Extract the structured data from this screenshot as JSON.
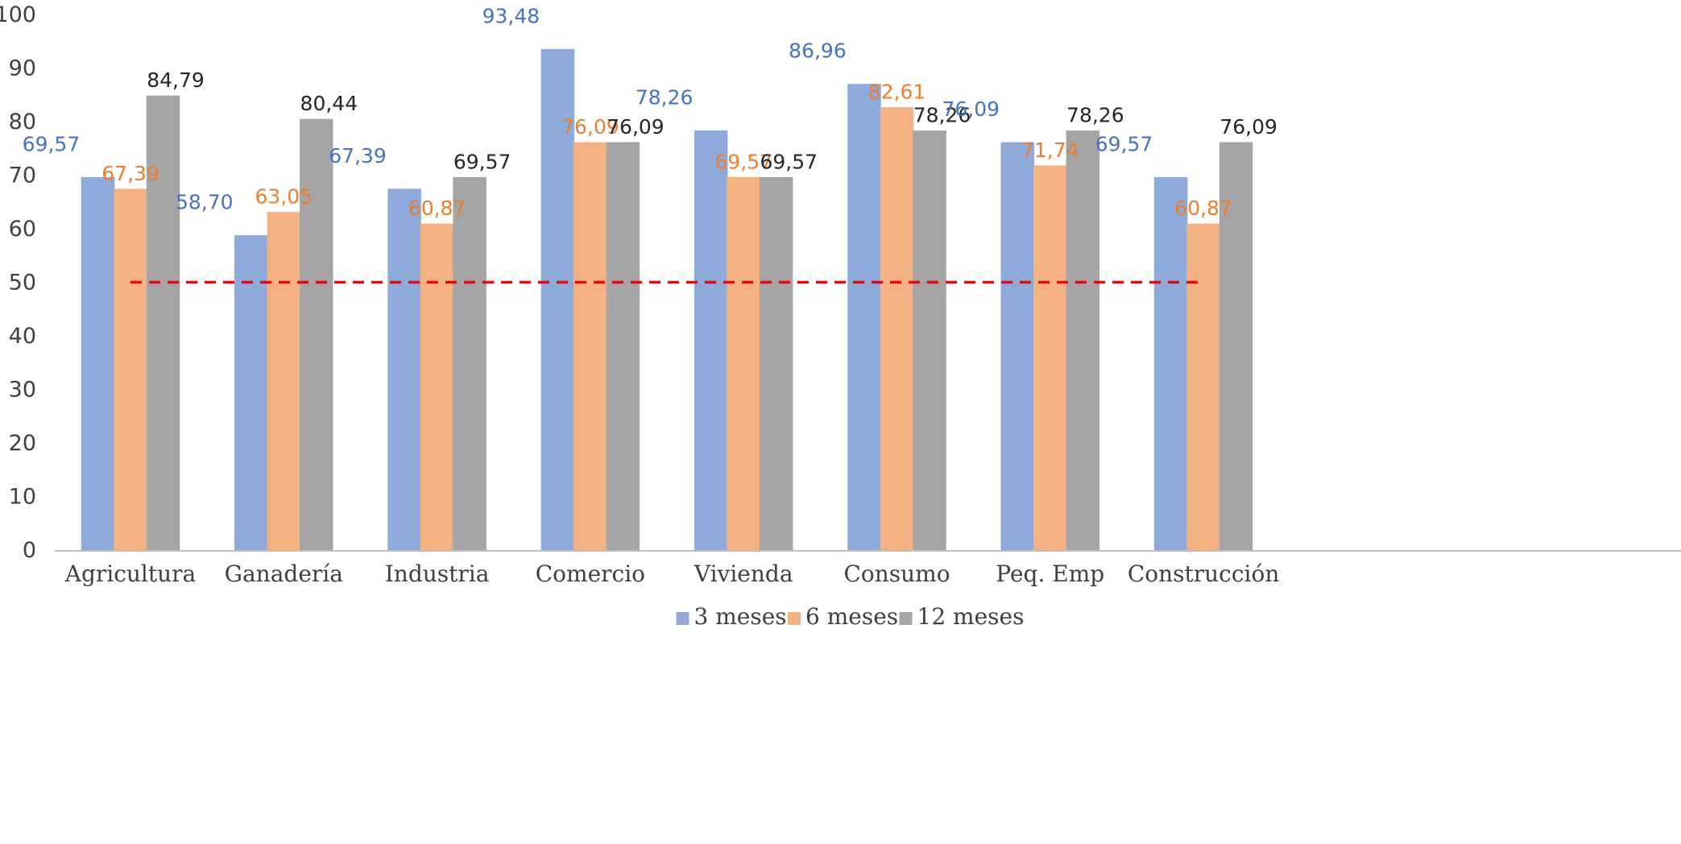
{
  "chart_data": {
    "type": "bar",
    "title": "",
    "xlabel": "",
    "ylabel": "",
    "ylim": [
      0,
      100
    ],
    "yticks": [
      "0",
      "10",
      "20",
      "30",
      "40",
      "50",
      "60",
      "70",
      "80",
      "90",
      "100"
    ],
    "grid": false,
    "legend_position": "bottom",
    "categories": [
      "Agricultura",
      "Ganadería",
      "Industria",
      "Comercio",
      "Vivienda",
      "Consumo",
      "Peq. Emp",
      "Construcción"
    ],
    "series": [
      {
        "name": "3 meses",
        "color": "#8EAADB",
        "label_color": "#4472C4",
        "values": [
          69.57,
          58.7,
          67.39,
          93.48,
          78.26,
          86.96,
          76.09,
          69.57
        ],
        "labels": [
          "69,57",
          "58,70",
          "67,39",
          "93,48",
          "78,26",
          "86,96",
          "76,09",
          "69,57"
        ]
      },
      {
        "name": "6 meses",
        "color": "#F4B183",
        "label_color": "#ED7D31",
        "values": [
          67.39,
          63.05,
          60.87,
          76.09,
          69.57,
          82.61,
          71.74,
          60.87
        ],
        "labels": [
          "67,39",
          "63,05",
          "60,87",
          "76,09",
          "69,57",
          "82,61",
          "71,74",
          "60,87"
        ]
      },
      {
        "name": "12 meses",
        "color": "#A5A5A5",
        "label_color": "#262626",
        "values": [
          84.79,
          80.44,
          69.57,
          76.09,
          69.57,
          78.26,
          78.26,
          76.09
        ],
        "labels": [
          "84,79",
          "80,44",
          "69,57",
          "76,09",
          "69,57",
          "78,26",
          "78,26",
          "76,09"
        ]
      }
    ],
    "reference_line": {
      "value": 50,
      "color": "#FF0000",
      "style": "dashed"
    }
  }
}
